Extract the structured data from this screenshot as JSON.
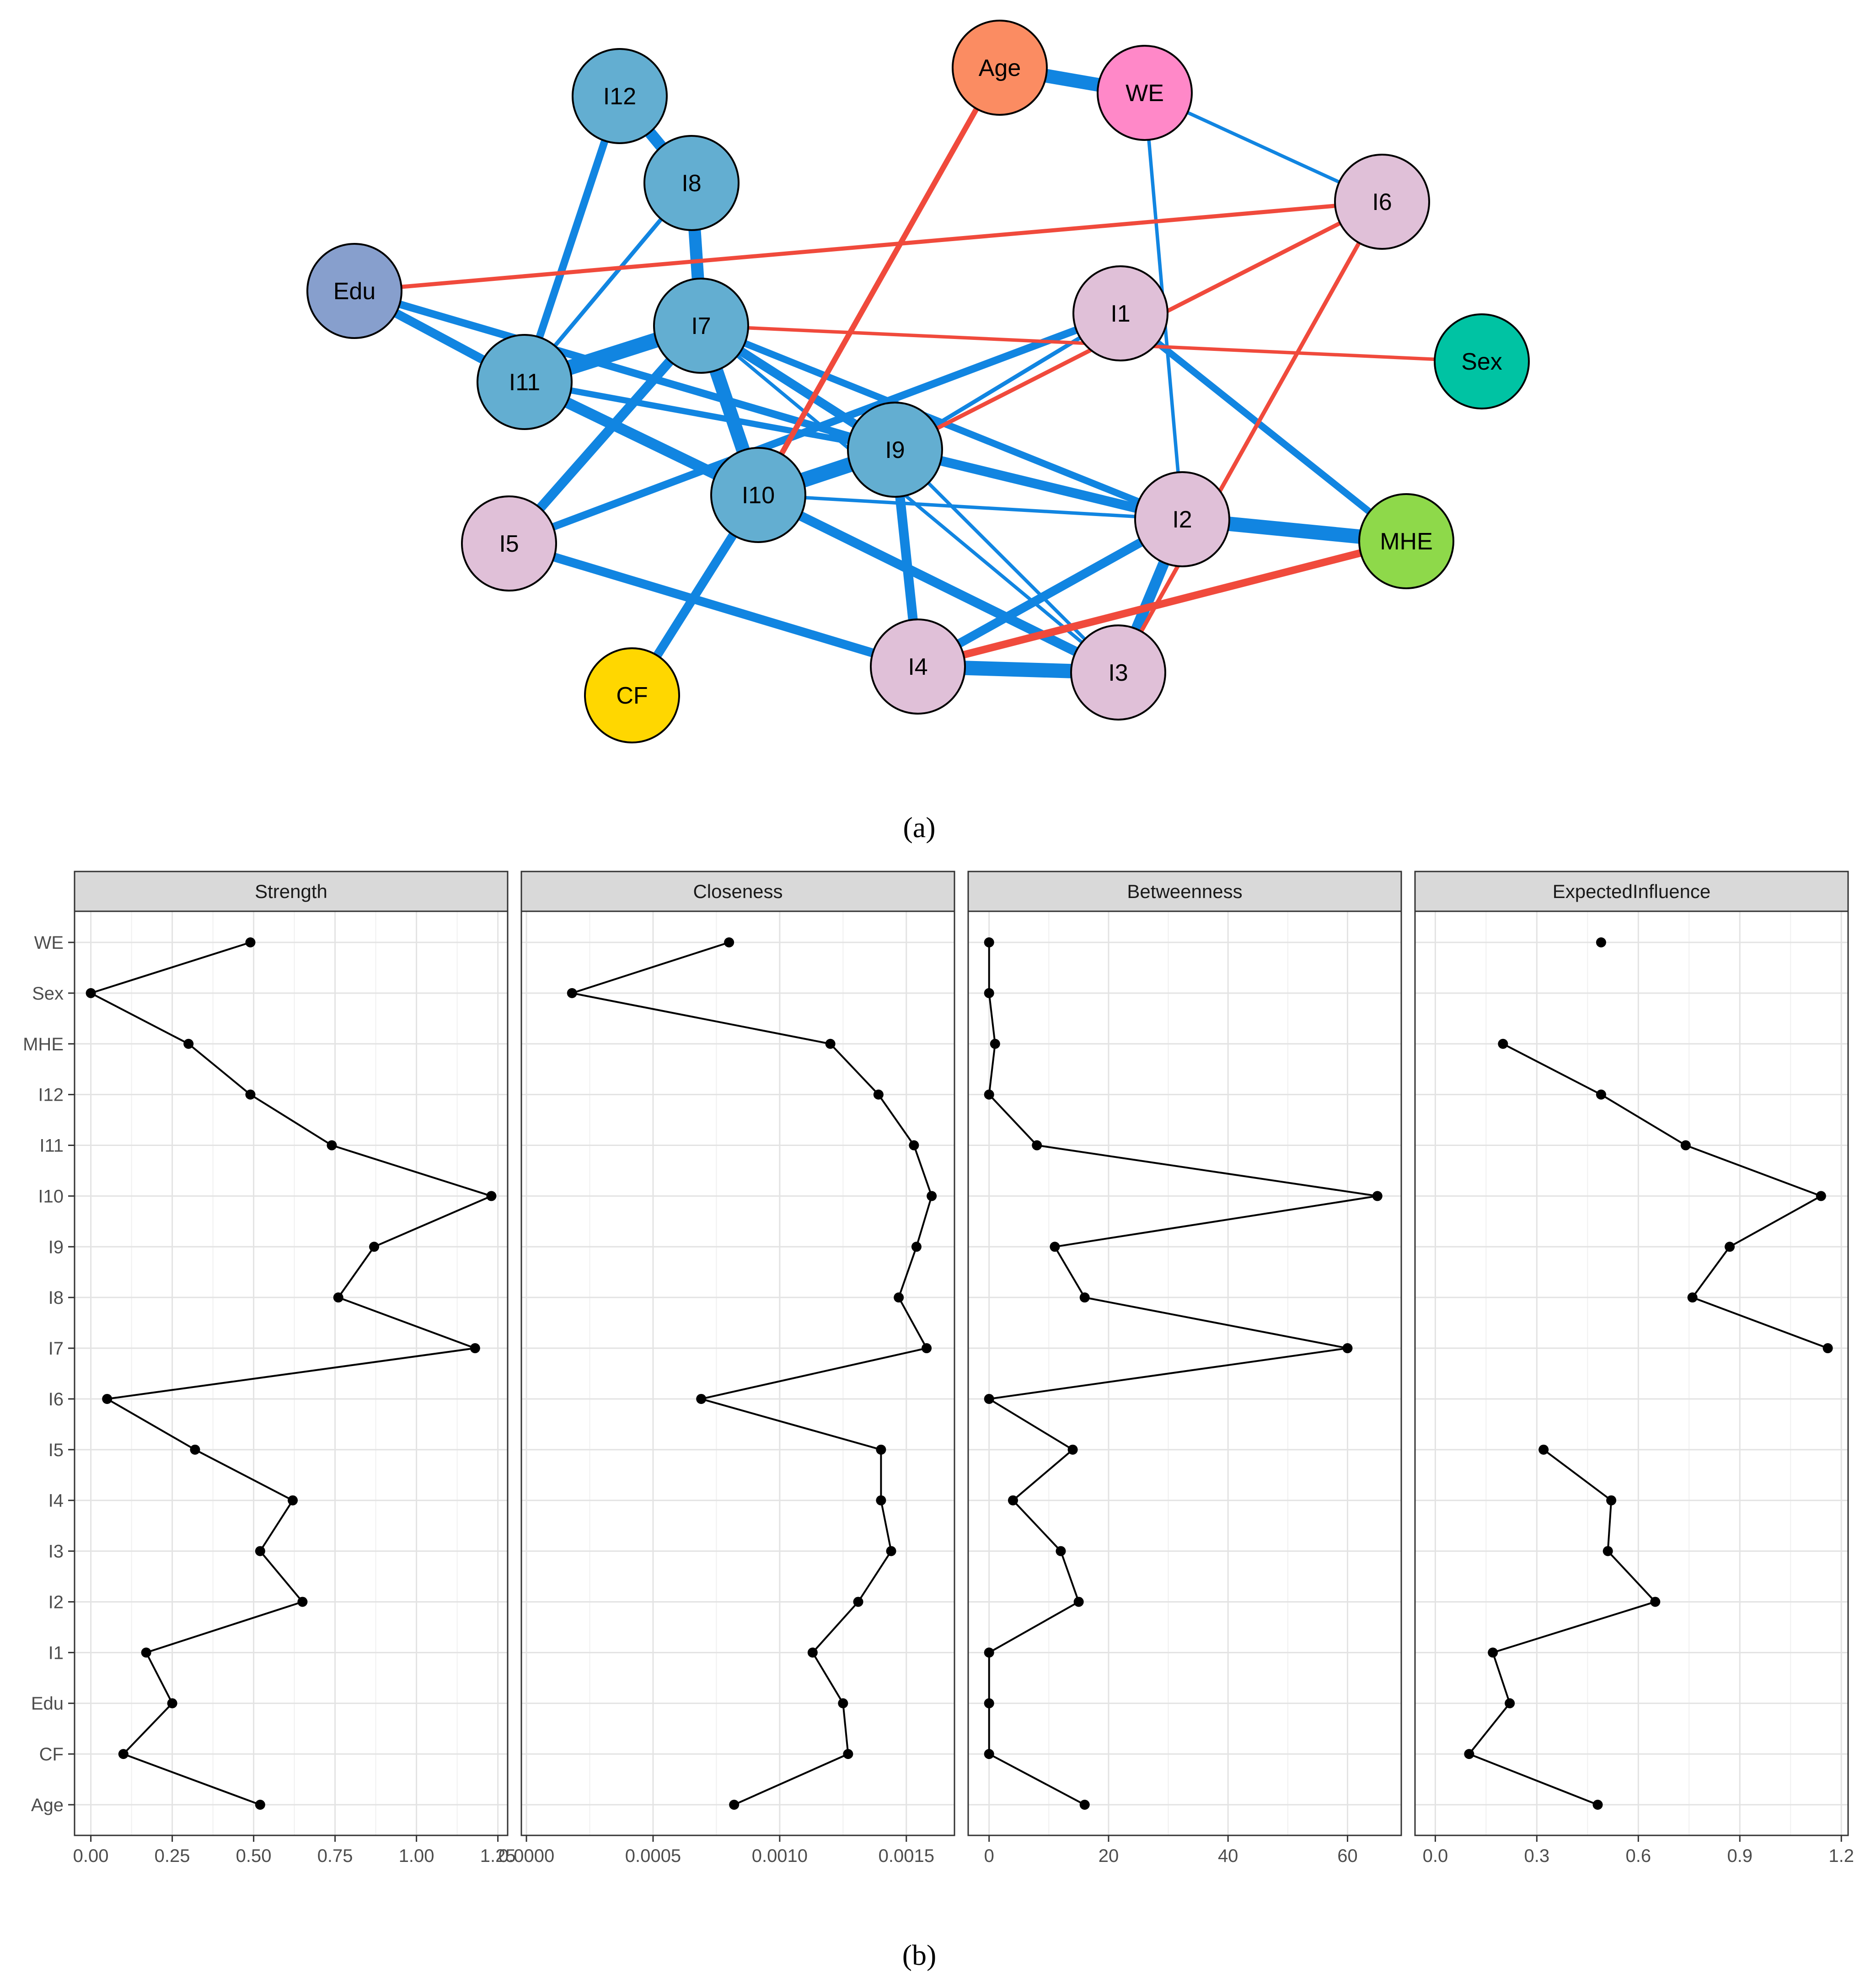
{
  "captions": {
    "a": "(a)",
    "b": "(b)"
  },
  "network": {
    "colors": {
      "positive": "#1185E1",
      "negative": "#F04A3C"
    },
    "nodes": [
      {
        "id": "I12",
        "label": "I12",
        "color": "#63AED1"
      },
      {
        "id": "I8",
        "label": "I8",
        "color": "#63AED1"
      },
      {
        "id": "Age",
        "label": "Age",
        "color": "#FB8C62"
      },
      {
        "id": "WE",
        "label": "WE",
        "color": "#FF88C8"
      },
      {
        "id": "I6",
        "label": "I6",
        "color": "#E0C0D8"
      },
      {
        "id": "Edu",
        "label": "Edu",
        "color": "#879FCD"
      },
      {
        "id": "I7",
        "label": "I7",
        "color": "#63AED1"
      },
      {
        "id": "I1",
        "label": "I1",
        "color": "#E0C0D8"
      },
      {
        "id": "Sex",
        "label": "Sex",
        "color": "#00C3A3"
      },
      {
        "id": "I11",
        "label": "I11",
        "color": "#63AED1"
      },
      {
        "id": "I9",
        "label": "I9",
        "color": "#63AED1"
      },
      {
        "id": "I10",
        "label": "I10",
        "color": "#63AED1"
      },
      {
        "id": "I2",
        "label": "I2",
        "color": "#E0C0D8"
      },
      {
        "id": "MHE",
        "label": "MHE",
        "color": "#8ED94A"
      },
      {
        "id": "I5",
        "label": "I5",
        "color": "#E0C0D8"
      },
      {
        "id": "I4",
        "label": "I4",
        "color": "#E0C0D8"
      },
      {
        "id": "I3",
        "label": "I3",
        "color": "#E0C0D8"
      },
      {
        "id": "CF",
        "label": "CF",
        "color": "#FFD700"
      }
    ],
    "edges": [
      {
        "from": "Age",
        "to": "WE",
        "sign": "positive",
        "weight": 0.9
      },
      {
        "from": "I12",
        "to": "I8",
        "sign": "positive",
        "weight": 0.75
      },
      {
        "from": "I8",
        "to": "I7",
        "sign": "positive",
        "weight": 0.8
      },
      {
        "from": "I12",
        "to": "I11",
        "sign": "positive",
        "weight": 0.45
      },
      {
        "from": "I8",
        "to": "I11",
        "sign": "positive",
        "weight": 0.2
      },
      {
        "from": "I7",
        "to": "I11",
        "sign": "positive",
        "weight": 1.0
      },
      {
        "from": "I7",
        "to": "I10",
        "sign": "positive",
        "weight": 0.9
      },
      {
        "from": "I10",
        "to": "I9",
        "sign": "positive",
        "weight": 1.0
      },
      {
        "from": "I7",
        "to": "I9",
        "sign": "positive",
        "weight": 0.55
      },
      {
        "from": "I7",
        "to": "I5",
        "sign": "positive",
        "weight": 0.6
      },
      {
        "from": "I7",
        "to": "I2",
        "sign": "positive",
        "weight": 0.4
      },
      {
        "from": "I7",
        "to": "I3",
        "sign": "positive",
        "weight": 0.15
      },
      {
        "from": "I11",
        "to": "I10",
        "sign": "positive",
        "weight": 0.7
      },
      {
        "from": "I11",
        "to": "I9",
        "sign": "positive",
        "weight": 0.35
      },
      {
        "from": "Edu",
        "to": "I11",
        "sign": "positive",
        "weight": 0.55
      },
      {
        "from": "Edu",
        "to": "I9",
        "sign": "positive",
        "weight": 0.45
      },
      {
        "from": "I9",
        "to": "I2",
        "sign": "positive",
        "weight": 0.6
      },
      {
        "from": "I9",
        "to": "I4",
        "sign": "positive",
        "weight": 0.6
      },
      {
        "from": "I9",
        "to": "I3",
        "sign": "positive",
        "weight": 0.15
      },
      {
        "from": "I9",
        "to": "I1",
        "sign": "positive",
        "weight": 0.2
      },
      {
        "from": "I10",
        "to": "I3",
        "sign": "positive",
        "weight": 0.6
      },
      {
        "from": "I10",
        "to": "CF",
        "sign": "positive",
        "weight": 0.55
      },
      {
        "from": "I10",
        "to": "I2",
        "sign": "positive",
        "weight": 0.15
      },
      {
        "from": "I1",
        "to": "I5",
        "sign": "positive",
        "weight": 0.45
      },
      {
        "from": "I1",
        "to": "MHE",
        "sign": "positive",
        "weight": 0.4
      },
      {
        "from": "I5",
        "to": "I4",
        "sign": "positive",
        "weight": 0.55
      },
      {
        "from": "I4",
        "to": "I3",
        "sign": "positive",
        "weight": 0.95
      },
      {
        "from": "I2",
        "to": "I3",
        "sign": "positive",
        "weight": 0.7
      },
      {
        "from": "I2",
        "to": "I4",
        "sign": "positive",
        "weight": 0.55
      },
      {
        "from": "I2",
        "to": "MHE",
        "sign": "positive",
        "weight": 0.95
      },
      {
        "from": "WE",
        "to": "I6",
        "sign": "positive",
        "weight": 0.15
      },
      {
        "from": "WE",
        "to": "I2",
        "sign": "positive",
        "weight": 0.15
      },
      {
        "from": "Edu",
        "to": "I6",
        "sign": "negative",
        "weight": 0.2
      },
      {
        "from": "I7",
        "to": "Sex",
        "sign": "negative",
        "weight": 0.15
      },
      {
        "from": "Age",
        "to": "I10",
        "sign": "negative",
        "weight": 0.3
      },
      {
        "from": "I6",
        "to": "I9",
        "sign": "negative",
        "weight": 0.2
      },
      {
        "from": "I6",
        "to": "I3",
        "sign": "negative",
        "weight": 0.2
      },
      {
        "from": "MHE",
        "to": "I4",
        "sign": "negative",
        "weight": 0.45
      }
    ]
  },
  "chart_data": {
    "type": "line",
    "categories": [
      "WE",
      "Sex",
      "MHE",
      "I12",
      "I11",
      "I10",
      "I9",
      "I8",
      "I7",
      "I6",
      "I5",
      "I4",
      "I3",
      "I2",
      "I1",
      "Edu",
      "CF",
      "Age"
    ],
    "grid": true,
    "panels": [
      {
        "title": "Strength",
        "xlim": [
          -0.05,
          1.28
        ],
        "ticks": [
          0,
          0.25,
          0.5,
          0.75,
          1,
          1.25
        ],
        "tick_labels": [
          "0.00",
          "0.25",
          "0.50",
          "0.75",
          "1.00",
          "1.25"
        ],
        "values": [
          0.49,
          0.0,
          0.3,
          0.49,
          0.74,
          1.23,
          0.87,
          0.76,
          1.18,
          0.05,
          0.32,
          0.62,
          0.52,
          0.65,
          0.17,
          0.25,
          0.1,
          0.52
        ]
      },
      {
        "title": "Closeness",
        "xlim": [
          -2e-05,
          0.00169
        ],
        "ticks": [
          0,
          0.0005,
          0.001,
          0.0015
        ],
        "tick_labels": [
          "0.0000",
          "0.0005",
          "0.0010",
          "0.0015"
        ],
        "values": [
          0.0008,
          0.00018,
          0.0012,
          0.00139,
          0.00153,
          0.0016,
          0.00154,
          0.00147,
          0.00158,
          0.00069,
          0.0014,
          0.0014,
          0.00144,
          0.00131,
          0.00113,
          0.00125,
          0.00127,
          0.00082
        ]
      },
      {
        "title": "Betweenness",
        "xlim": [
          -3.5,
          69
        ],
        "ticks": [
          0,
          20,
          40,
          60
        ],
        "tick_labels": [
          "0",
          "20",
          "40",
          "60"
        ],
        "values": [
          0,
          0,
          1,
          0,
          8,
          65,
          11,
          16,
          60,
          0,
          14,
          4,
          12,
          15,
          0,
          0,
          0,
          16
        ]
      },
      {
        "title": "ExpectedInfluence",
        "xlim": [
          -0.06,
          1.22
        ],
        "ticks": [
          0,
          0.3,
          0.6,
          0.9,
          1.2
        ],
        "tick_labels": [
          "0.0",
          "0.3",
          "0.6",
          "0.9",
          "1.2"
        ],
        "values": [
          0.49,
          null,
          0.2,
          0.49,
          0.74,
          1.14,
          0.87,
          0.76,
          1.16,
          null,
          0.32,
          0.52,
          0.51,
          0.65,
          0.17,
          0.22,
          0.1,
          0.48
        ]
      }
    ]
  }
}
